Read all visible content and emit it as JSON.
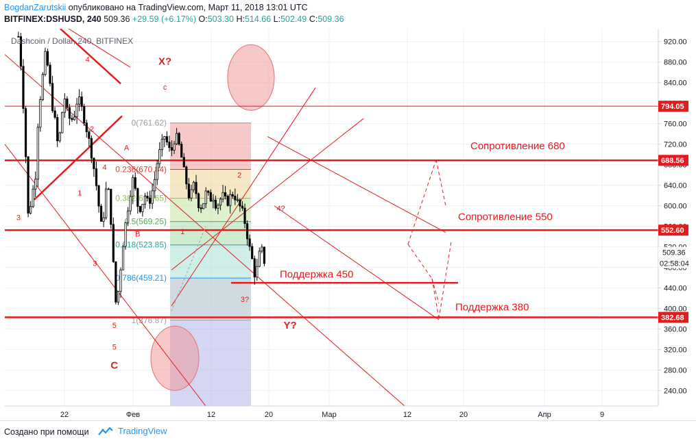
{
  "header": {
    "author": "BogdanZarutskii",
    "published": " опубликовано на TradingView.com, Март 11, 2018 13:01 UTC",
    "symbol": "BITFINEX:DSHUSD, 240",
    "last": "509.36",
    "change": "+29.59 (+6.17%)",
    "o_label": "O:",
    "o": "503.30",
    "h_label": "H:",
    "h": "514.66",
    "l_label": "L:",
    "l": "502.49",
    "c_label": "C:",
    "c": "509.36"
  },
  "footer": {
    "made_with": "Создано при помощи",
    "brand": "TradingView"
  },
  "colors": {
    "red": "#e41a1c",
    "accent_blue": "#2196f3",
    "grid": "#e8eaf0"
  },
  "chart_data": {
    "type": "candlestick",
    "title": "Dashcoin / Dollar, 240, BITFINEX",
    "ylim": [
      210,
      945
    ],
    "y_ticks": [
      240,
      280,
      320,
      360,
      400,
      440,
      480,
      520,
      560,
      600,
      640,
      680,
      720,
      760,
      800,
      840,
      880,
      920
    ],
    "y_tick_labels": [
      "240.00",
      "280.00",
      "320.00",
      "360.00",
      "400.00",
      "440.00",
      "480.00",
      "520.00",
      "560.00",
      "600.00",
      "640.00",
      "680.00",
      "720.00",
      "760.00",
      "800.00",
      "840.00",
      "880.00",
      "920.00"
    ],
    "x_tick_labels": [
      "22",
      "Фев",
      "12",
      "20",
      "Мар",
      "12",
      "20",
      "Апр",
      "9"
    ],
    "price_badges": [
      {
        "label": "794.05",
        "value": 794.05
      },
      {
        "label": "688.56",
        "value": 688.56
      },
      {
        "label": "552.60",
        "value": 552.6
      },
      {
        "label": "382.68",
        "value": 382.68
      }
    ],
    "current_price": {
      "label": "509.36",
      "value": 509.36,
      "countdown": "02:58:04"
    },
    "price_path": [
      {
        "x": 2.8,
        "y": 930
      },
      {
        "x": 3.5,
        "y": 855
      },
      {
        "x": 4.2,
        "y": 720
      },
      {
        "x": 4.9,
        "y": 560
      },
      {
        "x": 5.5,
        "y": 625
      },
      {
        "x": 6.2,
        "y": 640
      },
      {
        "x": 6.9,
        "y": 780
      },
      {
        "x": 7.7,
        "y": 845
      },
      {
        "x": 8.4,
        "y": 900
      },
      {
        "x": 9.0,
        "y": 860
      },
      {
        "x": 9.7,
        "y": 798
      },
      {
        "x": 10.4,
        "y": 760
      },
      {
        "x": 11.0,
        "y": 707
      },
      {
        "x": 11.6,
        "y": 772
      },
      {
        "x": 12.3,
        "y": 810
      },
      {
        "x": 12.9,
        "y": 778
      },
      {
        "x": 13.6,
        "y": 765
      },
      {
        "x": 14.3,
        "y": 778
      },
      {
        "x": 15.0,
        "y": 812
      },
      {
        "x": 15.7,
        "y": 793
      },
      {
        "x": 16.3,
        "y": 770
      },
      {
        "x": 16.9,
        "y": 745
      },
      {
        "x": 17.5,
        "y": 718
      },
      {
        "x": 18.2,
        "y": 680
      },
      {
        "x": 18.8,
        "y": 640
      },
      {
        "x": 19.3,
        "y": 600
      },
      {
        "x": 19.9,
        "y": 555
      },
      {
        "x": 20.4,
        "y": 590
      },
      {
        "x": 20.9,
        "y": 640
      },
      {
        "x": 21.5,
        "y": 620
      },
      {
        "x": 21.9,
        "y": 555
      },
      {
        "x": 22.5,
        "y": 450
      },
      {
        "x": 22.9,
        "y": 400
      },
      {
        "x": 23.5,
        "y": 450
      },
      {
        "x": 24.2,
        "y": 520
      },
      {
        "x": 25.0,
        "y": 580
      },
      {
        "x": 25.7,
        "y": 620
      },
      {
        "x": 26.2,
        "y": 655
      },
      {
        "x": 26.8,
        "y": 630
      },
      {
        "x": 27.5,
        "y": 590
      },
      {
        "x": 28.2,
        "y": 604
      },
      {
        "x": 28.8,
        "y": 620
      },
      {
        "x": 29.5,
        "y": 603
      },
      {
        "x": 30.1,
        "y": 620
      },
      {
        "x": 30.8,
        "y": 652
      },
      {
        "x": 31.4,
        "y": 690
      },
      {
        "x": 32.1,
        "y": 715
      },
      {
        "x": 32.8,
        "y": 736
      },
      {
        "x": 33.5,
        "y": 718
      },
      {
        "x": 34.1,
        "y": 700
      },
      {
        "x": 34.7,
        "y": 728
      },
      {
        "x": 35.4,
        "y": 733
      },
      {
        "x": 36.1,
        "y": 705
      },
      {
        "x": 36.7,
        "y": 672
      },
      {
        "x": 37.4,
        "y": 640
      },
      {
        "x": 38.0,
        "y": 610
      },
      {
        "x": 38.7,
        "y": 643
      },
      {
        "x": 39.3,
        "y": 625
      },
      {
        "x": 40.0,
        "y": 595
      },
      {
        "x": 40.7,
        "y": 604
      },
      {
        "x": 41.4,
        "y": 628
      },
      {
        "x": 42.1,
        "y": 612
      },
      {
        "x": 42.8,
        "y": 618
      },
      {
        "x": 43.5,
        "y": 598
      },
      {
        "x": 44.2,
        "y": 612
      },
      {
        "x": 44.9,
        "y": 620
      },
      {
        "x": 45.6,
        "y": 604
      },
      {
        "x": 46.3,
        "y": 618
      },
      {
        "x": 47.0,
        "y": 625
      },
      {
        "x": 47.6,
        "y": 610
      },
      {
        "x": 48.3,
        "y": 598
      },
      {
        "x": 48.9,
        "y": 585
      },
      {
        "x": 49.5,
        "y": 560
      },
      {
        "x": 50.1,
        "y": 525
      },
      {
        "x": 50.8,
        "y": 495
      },
      {
        "x": 51.4,
        "y": 462
      },
      {
        "x": 52.0,
        "y": 485
      },
      {
        "x": 52.6,
        "y": 525
      },
      {
        "x": 53.2,
        "y": 488
      },
      {
        "x": 53.7,
        "y": 509.36
      }
    ],
    "horizontal_levels": [
      {
        "label": "Сопротивление 680",
        "value": 688.56
      },
      {
        "label": "Сопротивление 550",
        "value": 552.6
      },
      {
        "label": "Поддержка 450",
        "value": 450
      },
      {
        "label": "Поддержка 380",
        "value": 382.68
      }
    ],
    "fib_retracement": {
      "high": 761.62,
      "low": 376.87,
      "levels": [
        {
          "ratio": "0",
          "value": 761.62,
          "label": "0(761.62)"
        },
        {
          "ratio": "0.236",
          "value": 670.84,
          "label": "0.236(670.84)"
        },
        {
          "ratio": "0.382",
          "value": 614.65,
          "label": "0.382(614.65)"
        },
        {
          "ratio": "0.5",
          "value": 569.25,
          "label": "0.5(569.25)"
        },
        {
          "ratio": "0.618",
          "value": 523.85,
          "label": "0.618(523.85)"
        },
        {
          "ratio": "0.786",
          "value": 459.21,
          "label": "0.786(459.21)"
        },
        {
          "ratio": "1",
          "value": 376.87,
          "label": "1(376.87)"
        }
      ]
    },
    "annotations": [
      {
        "text": "4",
        "x": 17.0,
        "y": 880
      },
      {
        "text": "2",
        "x": 17.9,
        "y": 745
      },
      {
        "text": "1",
        "x": 15.4,
        "y": 620
      },
      {
        "text": "3",
        "x": 2.8,
        "y": 572
      },
      {
        "text": "3",
        "x": 18.5,
        "y": 483
      },
      {
        "text": "4",
        "x": 20.5,
        "y": 670
      },
      {
        "text": "A",
        "x": 25.0,
        "y": 708
      },
      {
        "text": "B",
        "x": 27.3,
        "y": 540
      },
      {
        "text": "5",
        "x": 22.5,
        "y": 362
      },
      {
        "text": "1",
        "x": 36.5,
        "y": 545
      },
      {
        "text": "2",
        "x": 48.2,
        "y": 655
      },
      {
        "text": "3?",
        "x": 49.3,
        "y": 413
      },
      {
        "text": "4?",
        "x": 56.7,
        "y": 590
      },
      {
        "text": "X?",
        "x": 32.9,
        "y": 875
      },
      {
        "text": "c",
        "x": 32.9,
        "y": 826
      },
      {
        "text": "5",
        "x": 22.5,
        "y": 320
      },
      {
        "text": "C",
        "x": 22.5,
        "y": 283
      },
      {
        "text": "Y?",
        "x": 58.6,
        "y": 361
      }
    ],
    "labels": {
      "resist_680": "Сопротивление 680",
      "resist_550": "Сопротивление 550",
      "support_450": "Поддержка 450",
      "support_380": "Поддержка 380"
    }
  }
}
